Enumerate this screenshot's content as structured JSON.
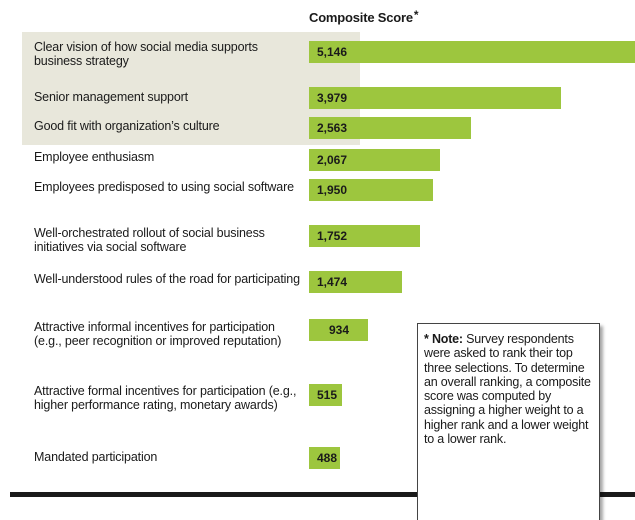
{
  "chart_data": {
    "type": "bar",
    "orientation": "horizontal",
    "title": "Composite Score",
    "title_marker": "*",
    "categories": [
      "Clear vision of how social media supports business strategy",
      "Senior management support",
      "Good fit with organization’s culture",
      "Employee enthusiasm",
      "Employees predisposed to using social software",
      "Well-orchestrated rollout of social business initiatives via social software",
      "Well-understood rules of the road for participating",
      "Attractive informal incentives for participation (e.g., peer recognition or improved reputation)",
      "Attractive formal incentives for participation (e.g., higher performance rating, monetary awards)",
      "Mandated participation"
    ],
    "values": [
      5146,
      3979,
      2563,
      2067,
      1950,
      1752,
      1474,
      934,
      515,
      488
    ],
    "value_labels": [
      "5,146",
      "3,979",
      "2,563",
      "2,067",
      "1,950",
      "1,752",
      "1,474",
      "934",
      "515",
      "488"
    ],
    "highlighted_count": 3,
    "bar_color": "#9dc63e",
    "highlight_color": "#e8e7db"
  },
  "note": {
    "marker": "* ",
    "label": "Note:",
    "text": "Survey respon­dents were asked to rank their top three se­lections. To determine an overall ranking, a composite score was computed by assign­ing a higher weight to a higher rank and a lower weight to a lower rank."
  }
}
